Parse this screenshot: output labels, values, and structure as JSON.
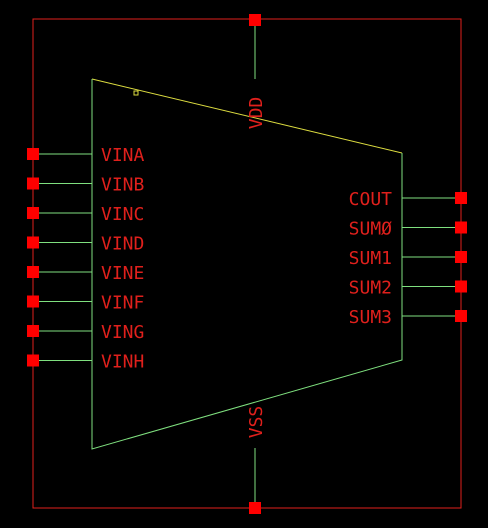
{
  "colors": {
    "background": "#000000",
    "border": "#e0201c",
    "wire": "#7fe07f",
    "pin": "#ff0000",
    "label": "#e0201c",
    "top_edge": "#dddd40",
    "origin_marker": "#dddd40"
  },
  "symbol": {
    "power_pins": {
      "top": "VDD",
      "bottom": "VSS"
    },
    "left_pins": [
      "VINA",
      "VINB",
      "VINC",
      "VIND",
      "VINE",
      "VINF",
      "VING",
      "VINH"
    ],
    "right_pins": [
      "COUT",
      "SUMØ",
      "SUM1",
      "SUM2",
      "SUM3"
    ]
  }
}
